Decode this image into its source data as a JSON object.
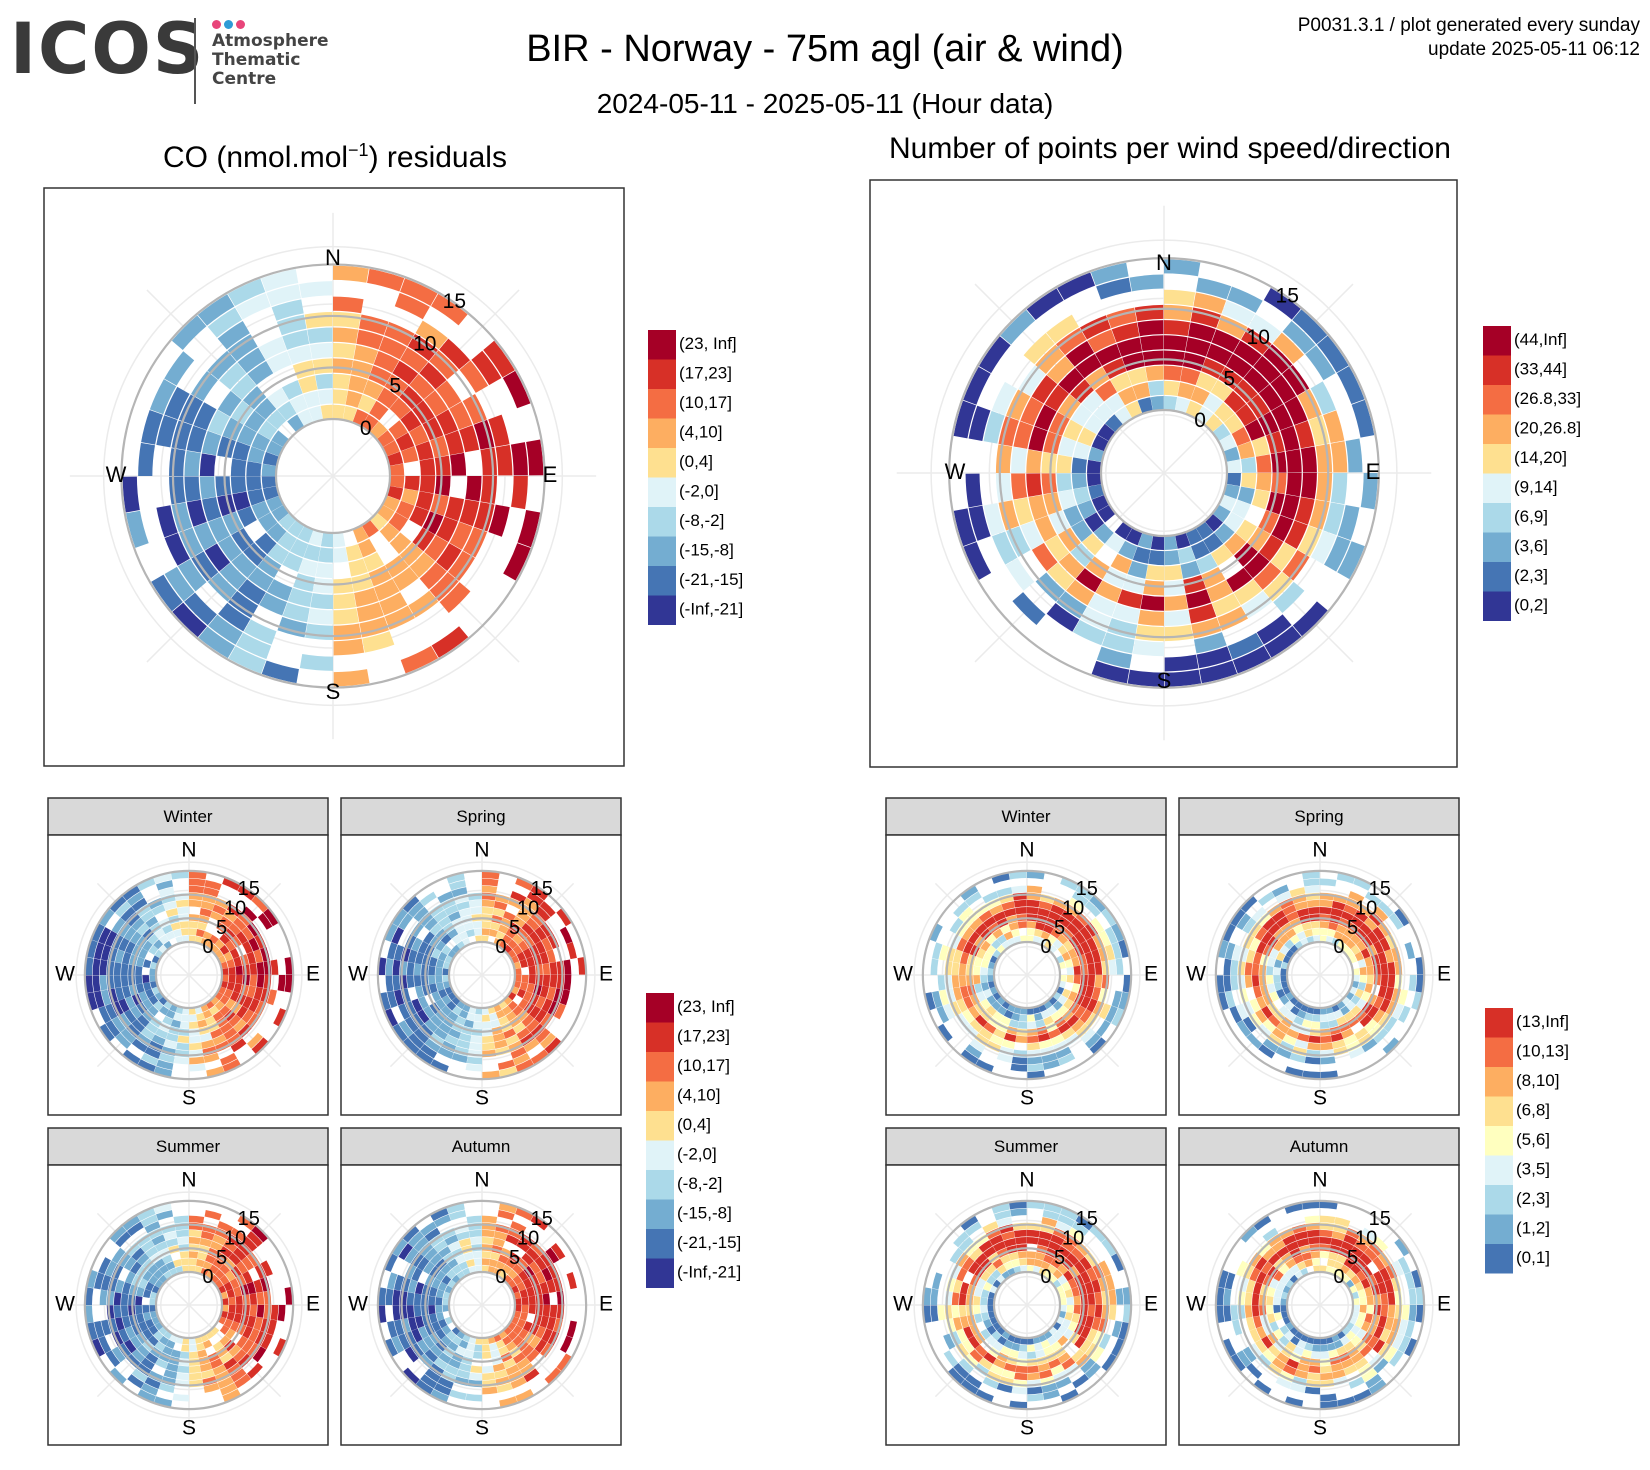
{
  "header": {
    "logo_word": "ICOS",
    "logo_lines": [
      "Atmosphere",
      "Thematic",
      "Centre"
    ],
    "logo_dot_colors": [
      "#e8457a",
      "#2e9bd6",
      "#e8457a"
    ],
    "title": "BIR - Norway - 75m agl (air & wind)",
    "subtitle": "2024-05-11 - 2025-05-11 (Hour data)",
    "meta_line1": "P0031.3.1 / plot generated every sunday",
    "meta_line2": "update  2025-05-11 06:12"
  },
  "panels": {
    "left_title": "CO (nmol.mol",
    "left_title_sup": "−1",
    "left_title_end": ") residuals",
    "right_title": "Number of points per wind speed/direction"
  },
  "compass": [
    "N",
    "E",
    "S",
    "W"
  ],
  "seasons": [
    "Winter",
    "Spring",
    "Summer",
    "Autumn"
  ],
  "chart_data": [
    {
      "type": "heatmap",
      "projection": "polar",
      "title": "CO (nmol.mol⁻¹) residuals",
      "r_ticks": [
        "0",
        "5",
        "10",
        "15"
      ],
      "legend_position": "right",
      "legend": [
        {
          "label": "(23, Inf]",
          "color": "#a50026"
        },
        {
          "label": "(17,23]",
          "color": "#d73027"
        },
        {
          "label": "(10,17]",
          "color": "#f46d43"
        },
        {
          "label": "(4,10]",
          "color": "#fdae61"
        },
        {
          "label": "(0,4]",
          "color": "#fee090"
        },
        {
          "label": "(-2,0]",
          "color": "#e0f3f8"
        },
        {
          "label": "(-8,-2]",
          "color": "#abd9e9"
        },
        {
          "label": "(-15,-8]",
          "color": "#74add1"
        },
        {
          "label": "(-21,-15]",
          "color": "#4575b4"
        },
        {
          "label": "(-Inf,-21]",
          "color": "#313695"
        }
      ]
    },
    {
      "type": "heatmap",
      "projection": "polar",
      "title": "Number of points per wind speed/direction",
      "r_ticks": [
        "0",
        "5",
        "10",
        "15"
      ],
      "legend_position": "right",
      "legend": [
        {
          "label": "(44,Inf]",
          "color": "#a50026"
        },
        {
          "label": "(33,44]",
          "color": "#d73027"
        },
        {
          "label": "(26.8,33]",
          "color": "#f46d43"
        },
        {
          "label": "(20,26.8]",
          "color": "#fdae61"
        },
        {
          "label": "(14,20]",
          "color": "#fee090"
        },
        {
          "label": "(9,14]",
          "color": "#e0f3f8"
        },
        {
          "label": "(6,9]",
          "color": "#abd9e9"
        },
        {
          "label": "(3,6]",
          "color": "#74add1"
        },
        {
          "label": "(2,3]",
          "color": "#4575b4"
        },
        {
          "label": "(0,2]",
          "color": "#313695"
        }
      ]
    },
    {
      "type": "heatmap",
      "projection": "polar",
      "facets": [
        "Winter",
        "Spring",
        "Summer",
        "Autumn"
      ],
      "r_ticks": [
        "0",
        "5",
        "10",
        "15"
      ],
      "legend_position": "right",
      "legend": [
        {
          "label": "(23, Inf]",
          "color": "#a50026"
        },
        {
          "label": "(17,23]",
          "color": "#d73027"
        },
        {
          "label": "(10,17]",
          "color": "#f46d43"
        },
        {
          "label": "(4,10]",
          "color": "#fdae61"
        },
        {
          "label": "(0,4]",
          "color": "#fee090"
        },
        {
          "label": "(-2,0]",
          "color": "#e0f3f8"
        },
        {
          "label": "(-8,-2]",
          "color": "#abd9e9"
        },
        {
          "label": "(-15,-8]",
          "color": "#74add1"
        },
        {
          "label": "(-21,-15]",
          "color": "#4575b4"
        },
        {
          "label": "(-Inf,-21]",
          "color": "#313695"
        }
      ]
    },
    {
      "type": "heatmap",
      "projection": "polar",
      "facets": [
        "Winter",
        "Spring",
        "Summer",
        "Autumn"
      ],
      "r_ticks": [
        "0",
        "5",
        "10",
        "15"
      ],
      "legend_position": "right",
      "legend": [
        {
          "label": "(13,Inf]",
          "color": "#d73027"
        },
        {
          "label": "(10,13]",
          "color": "#f46d43"
        },
        {
          "label": "(8,10]",
          "color": "#fdae61"
        },
        {
          "label": "(6,8]",
          "color": "#fee090"
        },
        {
          "label": "(5,6]",
          "color": "#ffffbf"
        },
        {
          "label": "(3,5]",
          "color": "#e0f3f8"
        },
        {
          "label": "(2,3]",
          "color": "#abd9e9"
        },
        {
          "label": "(1,2]",
          "color": "#74add1"
        },
        {
          "label": "(0,1]",
          "color": "#4575b4"
        }
      ]
    }
  ]
}
